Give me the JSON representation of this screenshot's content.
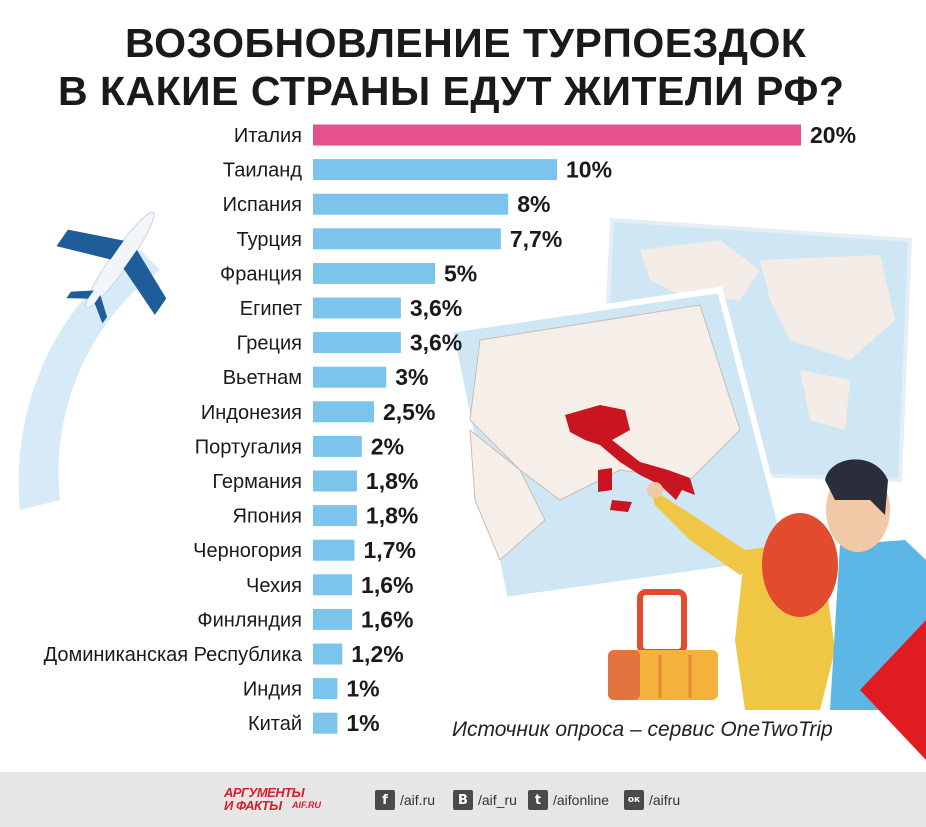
{
  "title": {
    "line1": "ВОЗОБНОВЛЕНИЕ ТУРПОЕЗДОК",
    "line2": "В КАКИЕ СТРАНЫ ЕДУТ ЖИТЕЛИ РФ?"
  },
  "chart_data": {
    "type": "bar",
    "orientation": "horizontal",
    "categories": [
      "Италия",
      "Таиланд",
      "Испания",
      "Турция",
      "Франция",
      "Египет",
      "Греция",
      "Вьетнам",
      "Индонезия",
      "Португалия",
      "Германия",
      "Япония",
      "Черногория",
      "Чехия",
      "Финляндия",
      "Доминиканская Республика",
      "Индия",
      "Китай"
    ],
    "values": [
      20,
      10,
      8,
      7.7,
      5,
      3.6,
      3.6,
      3,
      2.5,
      2,
      1.8,
      1.8,
      1.7,
      1.6,
      1.6,
      1.2,
      1,
      1
    ],
    "value_labels": [
      "20%",
      "10%",
      "8%",
      "7,7%",
      "5%",
      "3,6%",
      "3,6%",
      "3%",
      "2,5%",
      "2%",
      "1,8%",
      "1,8%",
      "1,7%",
      "1,6%",
      "1,6%",
      "1,2%",
      "1%",
      "1%"
    ],
    "highlight_index": 0,
    "colors": {
      "bar": "#7cc4ec",
      "highlight": "#e5508e"
    },
    "grid": false
  },
  "source": "Источник опроса – сервис OneTwoTrip",
  "footer": {
    "logo_top": "АРГУМЕНТЫ",
    "logo_bottom": "И ФАКТЫ",
    "logo_site": "AIF.RU",
    "social": [
      {
        "icon": "facebook-icon",
        "glyph": "f",
        "label": "/aif.ru"
      },
      {
        "icon": "vk-icon",
        "glyph": "В",
        "label": "/aif_ru"
      },
      {
        "icon": "twitter-icon",
        "glyph": "t",
        "label": "/aifonline"
      },
      {
        "icon": "odnoklassniki-icon",
        "glyph": "ок",
        "label": "/aifru"
      }
    ]
  }
}
